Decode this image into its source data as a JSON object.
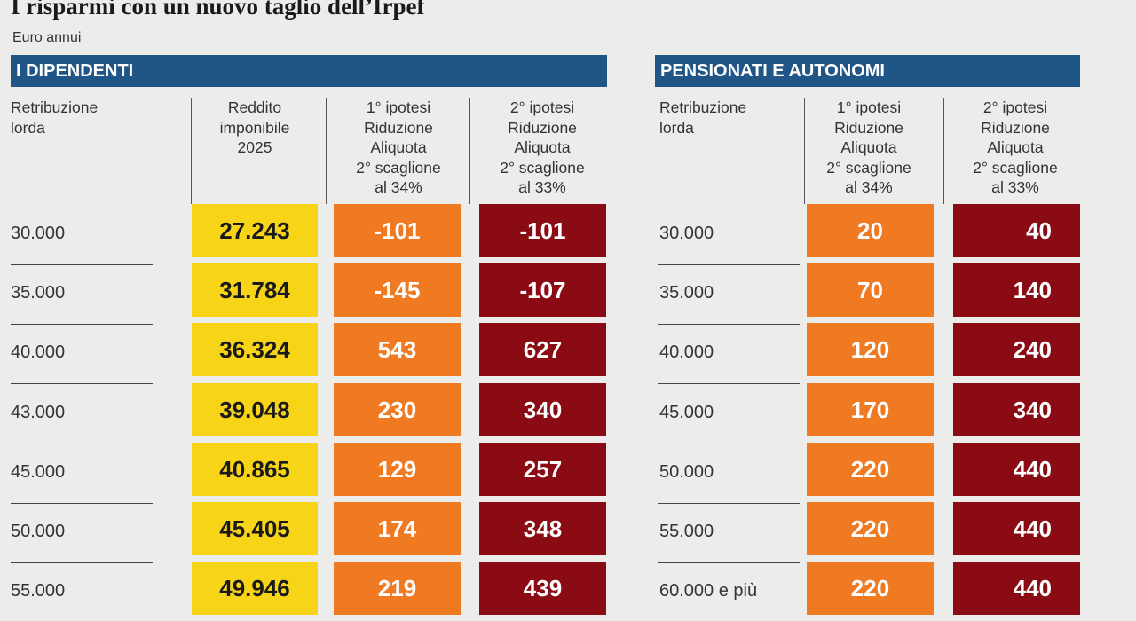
{
  "title": "I risparmi con un nuovo taglio dell’Irpef",
  "subtitle": "Euro annui",
  "colors": {
    "header_bar": "#1f5587",
    "taxable": "#f7d417",
    "hypothesis_1": "#f07a22",
    "hypothesis_2": "#8a0b14"
  },
  "employees": {
    "heading": "I DIPENDENTI",
    "col_gross": [
      "Retribuzione",
      "lorda"
    ],
    "col_taxable": [
      "Reddito",
      "imponibile",
      "2025"
    ],
    "col_h1": [
      "1° ipotesi",
      "Riduzione",
      "Aliquota",
      "2° scaglione",
      "al 34%"
    ],
    "col_h2": [
      "2° ipotesi",
      "Riduzione",
      "Aliquota",
      "2° scaglione",
      "al 33%"
    ]
  },
  "pensioners": {
    "heading": "PENSIONATI E AUTONOMI",
    "col_gross": [
      "Retribuzione",
      "lorda"
    ],
    "col_h1": [
      "1° ipotesi",
      "Riduzione",
      "Aliquota",
      "2° scaglione",
      "al 34%"
    ],
    "col_h2": [
      "2° ipotesi",
      "Riduzione",
      "Aliquota",
      "2° scaglione",
      "al 33%"
    ]
  },
  "chart_data": [
    {
      "type": "table",
      "title": "I DIPENDENTI",
      "columns": [
        "Retribuzione lorda",
        "Reddito imponibile 2025",
        "1° ipotesi Riduzione Aliquota 2° scaglione al 34%",
        "2° ipotesi Riduzione Aliquota 2° scaglione al 33%"
      ],
      "rows": [
        [
          "30.000",
          "27.243",
          "-101",
          "-101"
        ],
        [
          "35.000",
          "31.784",
          "-145",
          "-107"
        ],
        [
          "40.000",
          "36.324",
          "543",
          "627"
        ],
        [
          "43.000",
          "39.048",
          "230",
          "340"
        ],
        [
          "45.000",
          "40.865",
          "129",
          "257"
        ],
        [
          "50.000",
          "45.405",
          "174",
          "348"
        ],
        [
          "55.000",
          "49.946",
          "219",
          "439"
        ]
      ]
    },
    {
      "type": "table",
      "title": "PENSIONATI E AUTONOMI",
      "columns": [
        "Retribuzione lorda",
        "1° ipotesi Riduzione Aliquota 2° scaglione al 34%",
        "2° ipotesi Riduzione Aliquota 2° scaglione al 33%"
      ],
      "rows": [
        [
          "30.000",
          "20",
          "40"
        ],
        [
          "35.000",
          "70",
          "140"
        ],
        [
          "40.000",
          "120",
          "240"
        ],
        [
          "45.000",
          "170",
          "340"
        ],
        [
          "50.000",
          "220",
          "440"
        ],
        [
          "55.000",
          "220",
          "440"
        ],
        [
          "60.000 e più",
          "220",
          "440"
        ]
      ]
    }
  ]
}
